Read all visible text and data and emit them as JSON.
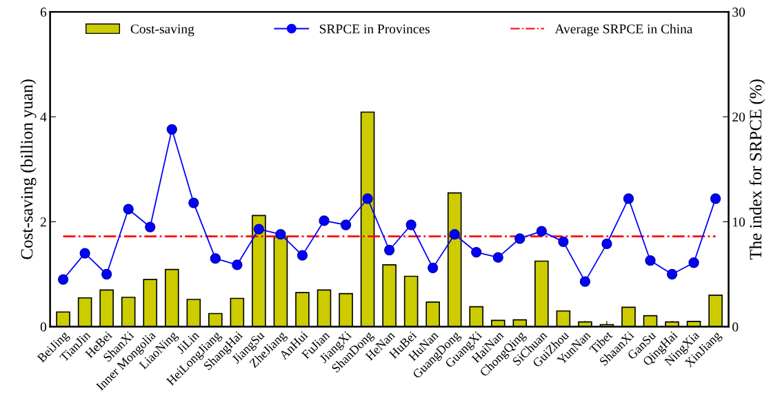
{
  "chart_data": {
    "type": "bar",
    "ylabel": "Cost-saving (billion yuan)",
    "y2label": "The index for SRPCE (%)",
    "categories": [
      "BeiJing",
      "TianJin",
      "HeBei",
      "ShanXi",
      "Inner Mongolia",
      "LiaoNing",
      "JiLin",
      "HeiLongJiang",
      "ShangHai",
      "JiangSu",
      "ZheJiang",
      "AnHui",
      "FuJian",
      "JiangXi",
      "ShanDong",
      "HeNan",
      "HuBei",
      "HuNan",
      "GuangDong",
      "GuangXi",
      "HaiNan",
      "ChongQing",
      "SiChuan",
      "GuiZhou",
      "YunNan",
      "Tibet",
      "ShaanXi",
      "GanSu",
      "QingHai",
      "NingXia",
      "XinJiang"
    ],
    "series": [
      {
        "name": "Cost-saving",
        "color": "#cccc00",
        "values": [
          0.28,
          0.55,
          0.7,
          0.56,
          0.9,
          1.09,
          0.52,
          0.25,
          0.54,
          2.12,
          1.71,
          0.65,
          0.7,
          0.63,
          4.09,
          1.18,
          0.96,
          0.47,
          2.55,
          0.38,
          0.12,
          0.13,
          1.25,
          0.3,
          0.09,
          0.04,
          0.37,
          0.21,
          0.09,
          0.1,
          0.6
        ]
      },
      {
        "name": "SRPCE in Provinces",
        "type": "line",
        "axis": "y2",
        "color": "#0000ff",
        "marker": "circle",
        "line_style": "solid",
        "values": [
          4.5,
          7.0,
          5.0,
          11.2,
          9.5,
          18.8,
          11.8,
          6.5,
          5.9,
          9.3,
          8.8,
          6.8,
          10.1,
          9.7,
          12.2,
          7.3,
          9.7,
          5.6,
          8.8,
          7.1,
          6.6,
          8.4,
          9.1,
          8.1,
          4.3,
          7.9,
          12.2,
          6.3,
          5.0,
          6.1,
          12.2
        ]
      }
    ],
    "ref_lines": [
      {
        "axis": "y2",
        "value": 8.6,
        "label": "Average SRPCE in China",
        "color": "#ff0000",
        "line_style": "dashdot"
      }
    ],
    "ylim": [
      0,
      6
    ],
    "yticks": [
      0,
      2,
      4,
      6
    ],
    "y2lim": [
      0,
      30
    ],
    "y2ticks": [
      0,
      10,
      20,
      30
    ],
    "grid": false,
    "legend": "top"
  }
}
